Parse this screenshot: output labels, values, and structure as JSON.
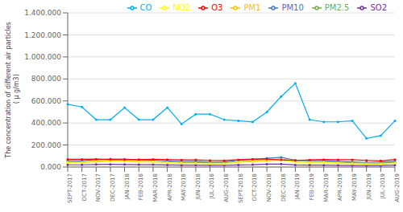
{
  "chart_data": {
    "type": "line",
    "ylabel": "The concentration of different air particles\n ( μ g/m3)",
    "categories": [
      "SEPT-2017",
      "OCT-2017",
      "NOV-2017",
      "DEC-2017",
      "JAN-2018",
      "FEB-2018",
      "MAR-2018",
      "APR-2018",
      "MAY-2018",
      "JUN-2018",
      "JUL-2018",
      "AUG-2018",
      "SEPT-2018",
      "OCT-2018",
      "NOV-2018",
      "DEC-2018",
      "JAN-2019",
      "FEB-2019",
      "MAR-2019",
      "APR-2019",
      "MAY-2019",
      "JUN-2019",
      "JUL-2019",
      "AUG-2019"
    ],
    "series": [
      {
        "name": "PM10",
        "color": "#4472c4",
        "values": [
          58000,
          57000,
          67000,
          73000,
          72000,
          65000,
          62000,
          56000,
          50000,
          50000,
          45000,
          45000,
          62000,
          68000,
          80000,
          88000,
          62000,
          58000,
          58000,
          52000,
          46000,
          42000,
          44000,
          50000
        ]
      },
      {
        "name": "PM2.5",
        "color": "#70ad47",
        "values": [
          48000,
          46000,
          56000,
          60000,
          61000,
          54000,
          52000,
          46000,
          41000,
          40000,
          37000,
          37000,
          51000,
          56000,
          66000,
          72000,
          52000,
          49000,
          49000,
          43000,
          38000,
          34000,
          36000,
          42000
        ]
      },
      {
        "name": "PM1",
        "color": "#ffc000",
        "values": [
          42000,
          40000,
          49000,
          53000,
          54000,
          47000,
          46000,
          40000,
          35000,
          35000,
          32000,
          32000,
          44000,
          49000,
          57000,
          63000,
          46000,
          43000,
          43000,
          38000,
          33000,
          30000,
          31000,
          37000
        ]
      },
      {
        "name": "SO2",
        "color": "#7030a0",
        "values": [
          20000,
          20000,
          23000,
          24000,
          23000,
          21000,
          21000,
          19000,
          17000,
          18000,
          16000,
          16000,
          19000,
          21000,
          26000,
          27000,
          19000,
          18000,
          17000,
          16000,
          14000,
          13000,
          13000,
          17000
        ]
      },
      {
        "name": "NO2",
        "color": "#ffff00",
        "values": [
          42000,
          41000,
          55000,
          58000,
          59000,
          50000,
          50000,
          42000,
          36000,
          34000,
          30000,
          30000,
          47000,
          53000,
          63000,
          68000,
          46000,
          45000,
          44000,
          36000,
          30000,
          28000,
          26000,
          36000
        ]
      },
      {
        "name": "O3",
        "color": "#ff0000",
        "values": [
          70000,
          70000,
          72000,
          69000,
          66000,
          68000,
          70000,
          68000,
          64000,
          65000,
          60000,
          59000,
          66000,
          72000,
          72000,
          65000,
          60000,
          64000,
          68000,
          66000,
          66000,
          60000,
          56000,
          68000
        ]
      },
      {
        "name": "CO",
        "color": "#00b0f0",
        "values": [
          570000,
          545000,
          430000,
          430000,
          540000,
          430000,
          430000,
          540000,
          390000,
          480000,
          480000,
          430000,
          420000,
          410000,
          500000,
          640000,
          760000,
          430000,
          410000,
          410000,
          420000,
          260000,
          285000,
          420000
        ]
      }
    ],
    "ylim": [
      0,
      1400000
    ],
    "yticks": [
      {
        "value": 0,
        "label": "0.000"
      },
      {
        "value": 200000,
        "label": "200.000"
      },
      {
        "value": 400000,
        "label": "400.000"
      },
      {
        "value": 600000,
        "label": "600.000"
      },
      {
        "value": 800000,
        "label": "800.000"
      },
      {
        "value": 1000000,
        "label": "1.000.000"
      },
      {
        "value": 1200000,
        "label": "1.200.000"
      },
      {
        "value": 1400000,
        "label": "1.400.000"
      }
    ],
    "grid": true,
    "legend": "upper right",
    "marker": "o"
  }
}
